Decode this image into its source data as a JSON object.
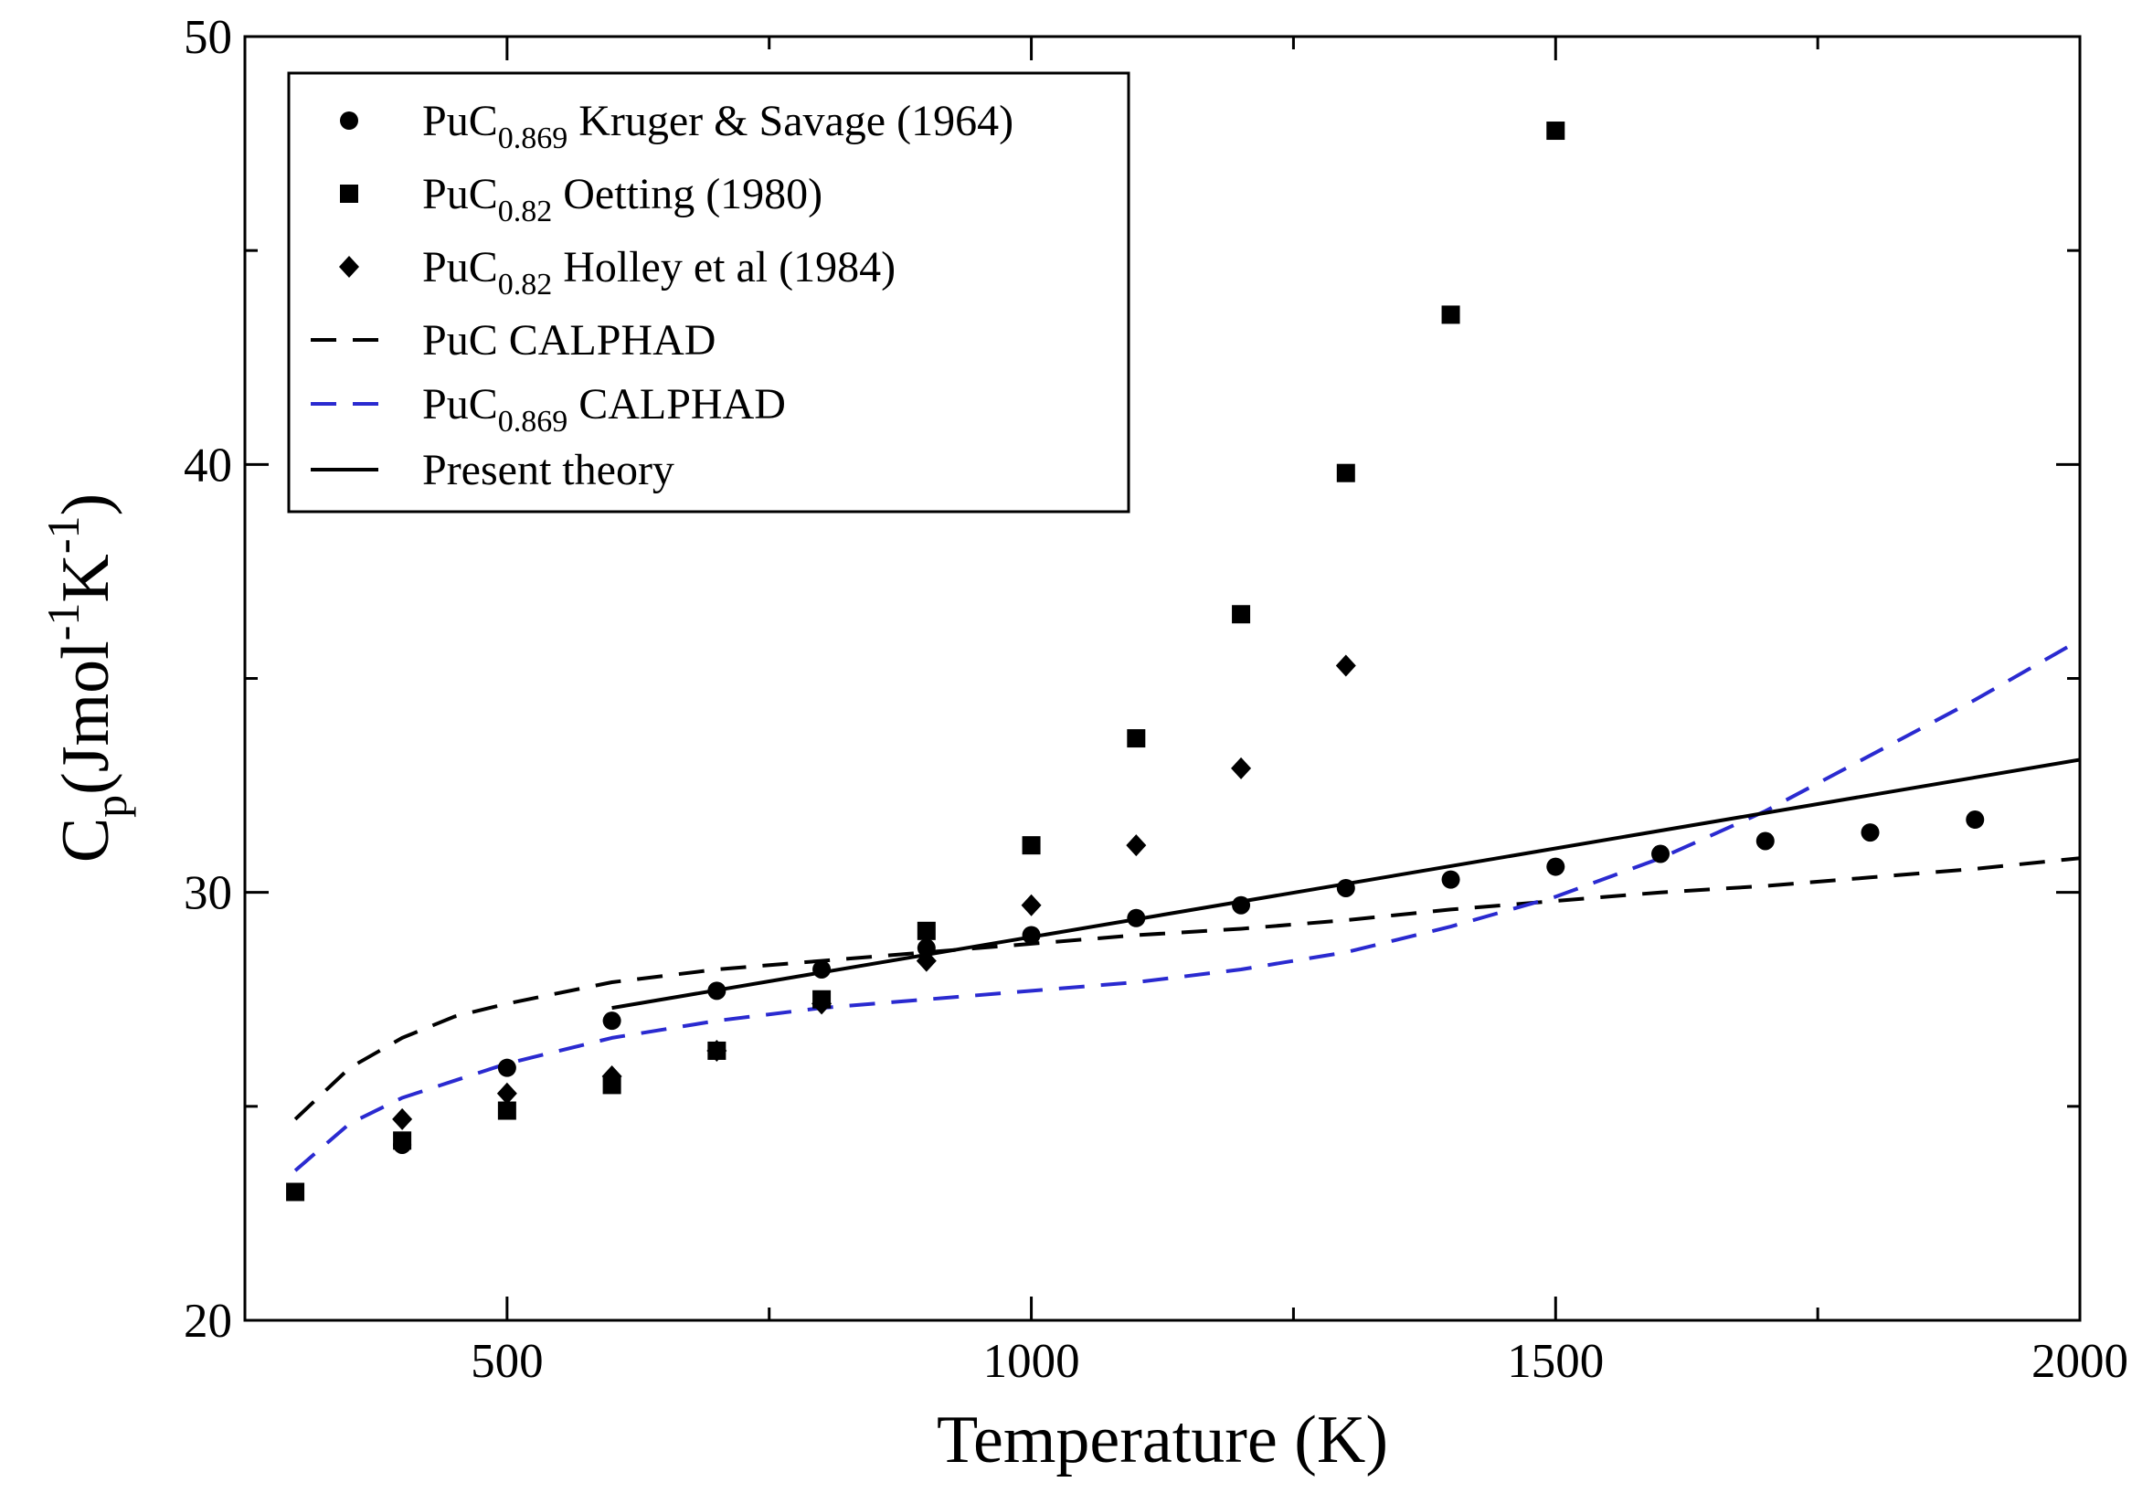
{
  "chart_data": {
    "type": "scatter",
    "title": "",
    "xlabel": "Temperature (K)",
    "ylabel": {
      "base": "C",
      "sub": "p",
      "open": "(Jmol",
      "sup1": "-1",
      "mid": "K",
      "sup2": "-1",
      "close": ")"
    },
    "xlim": [
      250,
      2000
    ],
    "ylim": [
      20,
      50
    ],
    "x_ticks": [
      500,
      1000,
      1500,
      2000
    ],
    "x_tick_labels": [
      "500",
      "1000",
      "1500",
      "2000"
    ],
    "y_ticks": [
      20,
      30,
      40,
      50
    ],
    "y_tick_labels": [
      "20",
      "30",
      "40",
      "50"
    ],
    "x_minor_step": 250,
    "y_minor_step": 5,
    "legend_position": "top-left",
    "series": [
      {
        "name": "PuC0.869 Kruger & Savage (1964)",
        "legend": {
          "main": "PuC",
          "sub": "0.869",
          "rest": " Kruger & Savage (1964)"
        },
        "kind": "marker",
        "marker": "circle",
        "color": "#000000",
        "x": [
          400,
          500,
          600,
          700,
          800,
          900,
          1000,
          1100,
          1200,
          1300,
          1400,
          1500,
          1600,
          1700,
          1800,
          1900
        ],
        "y": [
          24.1,
          25.9,
          27.0,
          27.7,
          28.2,
          28.7,
          29.0,
          29.4,
          29.7,
          30.1,
          30.3,
          30.6,
          30.9,
          31.2,
          31.4,
          31.7
        ]
      },
      {
        "name": "PuC0.82 Oetting (1980)",
        "legend": {
          "main": "PuC",
          "sub": "0.82",
          "rest": " Oetting (1980)"
        },
        "kind": "marker",
        "marker": "square",
        "color": "#000000",
        "x": [
          298,
          400,
          500,
          600,
          700,
          800,
          900,
          1000,
          1100,
          1200,
          1300,
          1400,
          1500
        ],
        "y": [
          23.0,
          24.2,
          24.9,
          25.5,
          26.3,
          27.5,
          29.1,
          31.1,
          33.6,
          36.5,
          39.8,
          43.5,
          47.8
        ]
      },
      {
        "name": "PuC0.82 Holley et al (1984)",
        "legend": {
          "main": "PuC",
          "sub": "0.82",
          "rest": " Holley et al (1984)"
        },
        "kind": "marker",
        "marker": "diamond",
        "color": "#000000",
        "x": [
          400,
          500,
          600,
          700,
          800,
          900,
          1000,
          1100,
          1200,
          1300
        ],
        "y": [
          24.7,
          25.3,
          25.7,
          26.3,
          27.4,
          28.4,
          29.7,
          31.1,
          32.9,
          35.3
        ]
      },
      {
        "name": "PuC CALPHAD",
        "legend": {
          "main": "PuC CALPHAD",
          "sub": "",
          "rest": ""
        },
        "kind": "line",
        "dash": "28,18",
        "color": "#000000",
        "x": [
          298,
          350,
          400,
          450,
          500,
          600,
          700,
          800,
          900,
          1000,
          1100,
          1200,
          1300,
          1400,
          1500,
          1600,
          1700,
          1800,
          1900,
          2000
        ],
        "y": [
          24.7,
          25.9,
          26.6,
          27.1,
          27.4,
          27.9,
          28.2,
          28.4,
          28.6,
          28.8,
          29.0,
          29.15,
          29.35,
          29.6,
          29.8,
          30.0,
          30.15,
          30.35,
          30.55,
          30.8
        ]
      },
      {
        "name": "PuC0.869 CALPHAD",
        "legend": {
          "main": "PuC",
          "sub": "0.869",
          "rest": " CALPHAD"
        },
        "kind": "line",
        "dash": "28,18",
        "color": "#2a2ad0",
        "x": [
          298,
          350,
          400,
          450,
          500,
          600,
          700,
          800,
          900,
          1000,
          1100,
          1200,
          1300,
          1400,
          1500,
          1600,
          1700,
          1800,
          1900,
          2000
        ],
        "y": [
          23.5,
          24.6,
          25.2,
          25.6,
          26.0,
          26.6,
          27.0,
          27.3,
          27.5,
          27.7,
          27.9,
          28.2,
          28.6,
          29.2,
          29.9,
          30.8,
          31.9,
          33.2,
          34.5,
          35.9
        ]
      },
      {
        "name": "Present theory",
        "legend": {
          "main": "Present theory",
          "sub": "",
          "rest": ""
        },
        "kind": "line",
        "dash": "",
        "color": "#000000",
        "x": [
          600,
          2000
        ],
        "y": [
          27.3,
          33.1
        ]
      }
    ]
  }
}
